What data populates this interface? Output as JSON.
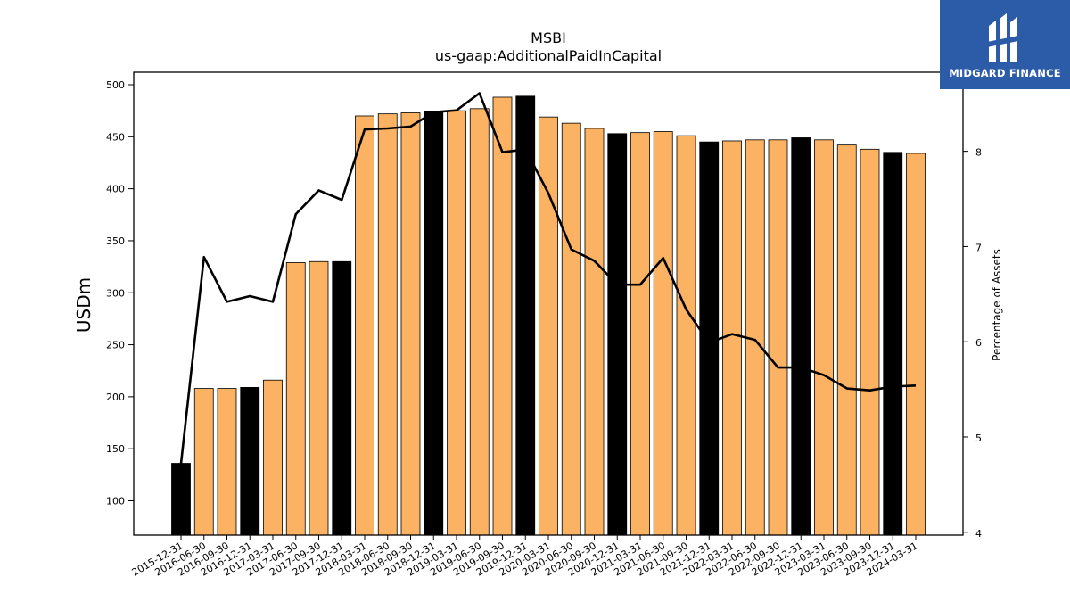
{
  "logo": {
    "text": "MIDGARD FINANCE",
    "icon": "midgard-finance-logo-mark",
    "color": "#2c5ba8"
  },
  "chart_data": {
    "type": "bar",
    "title": "MSBI",
    "subtitle": "us-gaap:AdditionalPaidInCapital",
    "ylabel": "USDm",
    "y2label": "Percentage of Assets",
    "ylim": [
      67,
      512
    ],
    "y2lim": [
      3.97,
      8.83
    ],
    "yticks": [
      100,
      150,
      200,
      250,
      300,
      350,
      400,
      450,
      500
    ],
    "y2ticks": [
      4,
      5,
      6,
      7,
      8
    ],
    "categories": [
      "2015-12-31",
      "2016-06-30",
      "2016-09-30",
      "2016-12-31",
      "2017-03-31",
      "2017-06-30",
      "2017-09-30",
      "2017-12-31",
      "2018-03-31",
      "2018-06-30",
      "2018-09-30",
      "2018-12-31",
      "2019-03-31",
      "2019-06-30",
      "2019-09-30",
      "2019-12-31",
      "2020-03-31",
      "2020-06-30",
      "2020-09-30",
      "2020-12-31",
      "2021-03-31",
      "2021-06-30",
      "2021-09-30",
      "2021-12-31",
      "2022-03-31",
      "2022-06-30",
      "2022-09-30",
      "2022-12-31",
      "2023-03-31",
      "2023-06-30",
      "2023-09-30",
      "2023-12-31",
      "2024-03-31"
    ],
    "series": [
      {
        "type": "bar",
        "values": [
          136,
          208,
          208,
          209,
          216,
          329,
          330,
          330,
          470,
          472,
          473,
          474,
          475,
          477,
          488,
          489,
          469,
          463,
          458,
          453,
          454,
          455,
          451,
          445,
          446,
          447,
          447,
          449,
          447,
          442,
          438,
          435,
          434
        ],
        "colors": [
          "#000000",
          "#fbb263",
          "#fbb263",
          "#000000",
          "#fbb263",
          "#fbb263",
          "#fbb263",
          "#000000",
          "#fbb263",
          "#fbb263",
          "#fbb263",
          "#000000",
          "#fbb263",
          "#fbb263",
          "#fbb263",
          "#000000",
          "#fbb263",
          "#fbb263",
          "#fbb263",
          "#000000",
          "#fbb263",
          "#fbb263",
          "#fbb263",
          "#000000",
          "#fbb263",
          "#fbb263",
          "#fbb263",
          "#000000",
          "#fbb263",
          "#fbb263",
          "#fbb263",
          "#000000",
          "#fbb263"
        ]
      },
      {
        "type": "line",
        "axis": "right",
        "color": "#000000",
        "values": [
          4.72,
          6.89,
          6.42,
          6.48,
          6.42,
          7.34,
          7.59,
          7.49,
          8.23,
          8.24,
          8.26,
          8.41,
          8.43,
          8.61,
          7.99,
          8.02,
          7.56,
          6.97,
          6.85,
          6.6,
          6.6,
          6.88,
          6.34,
          5.99,
          6.08,
          6.02,
          5.73,
          5.73,
          5.65,
          5.51,
          5.49,
          5.53,
          5.54
        ]
      }
    ],
    "grid": false
  }
}
